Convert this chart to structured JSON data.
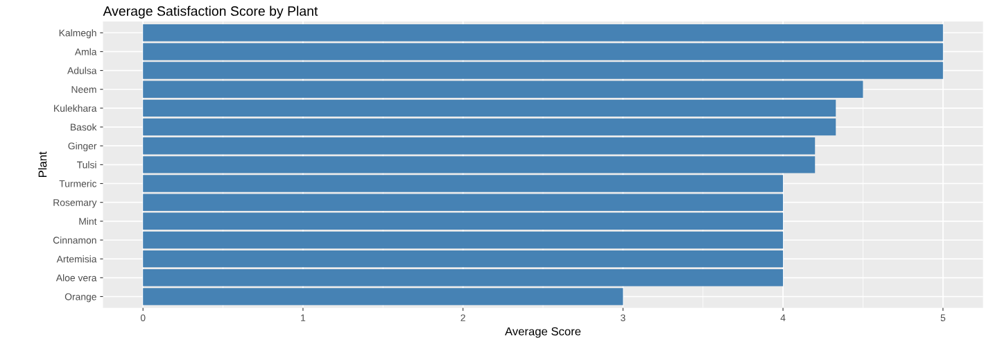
{
  "chart_data": {
    "type": "bar",
    "orientation": "horizontal",
    "title": "Average Satisfaction Score by Plant",
    "xlabel": "Average Score",
    "ylabel": "Plant",
    "categories": [
      "Kalmegh",
      "Amla",
      "Adulsa",
      "Neem",
      "Kulekhara",
      "Basok",
      "Ginger",
      "Tulsi",
      "Turmeric",
      "Rosemary",
      "Mint",
      "Cinnamon",
      "Artemisia",
      "Aloe vera",
      "Orange"
    ],
    "values": [
      5,
      5,
      5,
      4.5,
      4.33,
      4.33,
      4.2,
      4.2,
      4,
      4,
      4,
      4,
      4,
      4,
      3
    ],
    "color": "#4682b4",
    "xlim": [
      -0.25,
      5.25
    ],
    "xticks": [
      0,
      1,
      2,
      3,
      4,
      5
    ],
    "grid": true
  }
}
